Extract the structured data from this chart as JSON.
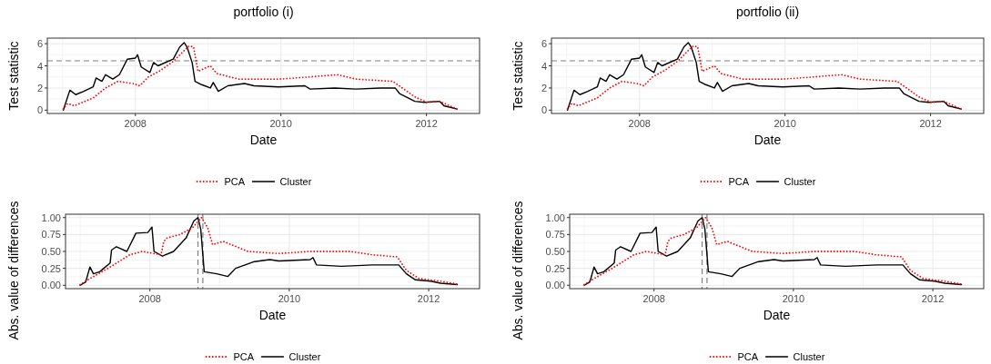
{
  "chart_data": [
    {
      "type": "line",
      "title": "portfolio (i)",
      "xlabel": "Date",
      "ylabel": "Test statistic",
      "xlim": [
        2006.79,
        2012.73
      ],
      "ylim": [
        -0.3,
        6.5
      ],
      "xticks": [
        {
          "value": 2007,
          "label": null
        },
        2008,
        {
          "value": 2009,
          "label": null
        },
        2010,
        {
          "value": 2011,
          "label": null
        },
        2012
      ],
      "yticks": [
        0,
        {
          "value": 1,
          "label": null
        },
        2,
        {
          "value": 3,
          "label": null
        },
        4,
        {
          "value": 5,
          "label": null
        },
        6
      ],
      "grid": true,
      "legend": "bottom",
      "ref_lines": [
        {
          "axis": "y",
          "value": 4.45,
          "color": "#808080",
          "line_style": "dashed"
        }
      ],
      "series": [
        {
          "name": "PCA",
          "color": "#ff0000",
          "line_style": "dotted",
          "x": [
            2007.01,
            2007.07,
            2007.16,
            2007.42,
            2007.59,
            2007.76,
            2007.97,
            2008.06,
            2008.18,
            2008.35,
            2008.52,
            2008.69,
            2008.74,
            2008.8,
            2008.86,
            2009.03,
            2009.12,
            2009.42,
            2009.97,
            2010.4,
            2010.78,
            2011.03,
            2011.54,
            2011.84,
            2012.01,
            2012.18,
            2012.42
          ],
          "values": [
            0.1,
            0.6,
            0.4,
            1.1,
            2.0,
            2.6,
            2.4,
            2.2,
            3.0,
            3.6,
            4.4,
            5.5,
            5.8,
            5.7,
            3.5,
            4.0,
            3.3,
            2.8,
            2.8,
            3.0,
            3.2,
            2.8,
            2.6,
            1.2,
            0.7,
            0.8,
            0.1
          ]
        },
        {
          "name": "Cluster",
          "color": "#000000",
          "line_style": "solid",
          "x": [
            2007.01,
            2007.1,
            2007.18,
            2007.29,
            2007.42,
            2007.46,
            2007.54,
            2007.59,
            2007.69,
            2007.78,
            2007.89,
            2008.0,
            2008.03,
            2008.08,
            2008.2,
            2008.25,
            2008.31,
            2008.52,
            2008.61,
            2008.67,
            2008.71,
            2008.78,
            2008.82,
            2008.91,
            2009.03,
            2009.07,
            2009.14,
            2009.27,
            2009.5,
            2009.63,
            2009.97,
            2010.33,
            2010.4,
            2010.74,
            2011.03,
            2011.37,
            2011.57,
            2011.63,
            2011.84,
            2011.97,
            2012.18,
            2012.24,
            2012.42
          ],
          "values": [
            0.0,
            1.8,
            1.4,
            1.7,
            2.1,
            2.9,
            2.6,
            3.2,
            2.8,
            3.2,
            4.6,
            4.7,
            5.0,
            3.9,
            3.4,
            4.3,
            4.0,
            4.6,
            5.7,
            6.1,
            5.7,
            4.3,
            2.6,
            2.3,
            2.0,
            2.5,
            1.7,
            2.2,
            2.4,
            2.2,
            2.1,
            2.2,
            1.9,
            2.0,
            1.9,
            2.0,
            2.0,
            1.5,
            0.8,
            0.7,
            0.8,
            0.4,
            0.1
          ]
        }
      ]
    },
    {
      "type": "line",
      "title": "portfolio (ii)",
      "xlabel": "Date",
      "ylabel": "Test statistic",
      "xlim": [
        2006.79,
        2012.73
      ],
      "ylim": [
        -0.3,
        6.5
      ],
      "xticks": [
        {
          "value": 2007,
          "label": null
        },
        2008,
        {
          "value": 2009,
          "label": null
        },
        2010,
        {
          "value": 2011,
          "label": null
        },
        2012
      ],
      "yticks": [
        0,
        {
          "value": 1,
          "label": null
        },
        2,
        {
          "value": 3,
          "label": null
        },
        4,
        {
          "value": 5,
          "label": null
        },
        6
      ],
      "grid": true,
      "legend": "bottom",
      "ref_lines": [
        {
          "axis": "y",
          "value": 4.45,
          "color": "#808080",
          "line_style": "dashed"
        }
      ],
      "series": [
        {
          "name": "PCA",
          "color": "#ff0000",
          "line_style": "dotted",
          "x": [
            2007.01,
            2007.07,
            2007.16,
            2007.42,
            2007.59,
            2007.76,
            2007.97,
            2008.06,
            2008.18,
            2008.35,
            2008.52,
            2008.69,
            2008.74,
            2008.8,
            2008.86,
            2009.03,
            2009.12,
            2009.42,
            2009.97,
            2010.4,
            2010.78,
            2011.03,
            2011.54,
            2011.84,
            2012.01,
            2012.18,
            2012.42
          ],
          "values": [
            0.1,
            0.6,
            0.4,
            1.1,
            2.0,
            2.6,
            2.4,
            2.2,
            3.0,
            3.6,
            4.4,
            5.5,
            5.8,
            5.7,
            3.5,
            4.0,
            3.3,
            2.8,
            2.8,
            3.0,
            3.2,
            2.8,
            2.6,
            1.2,
            0.7,
            0.8,
            0.1
          ]
        },
        {
          "name": "Cluster",
          "color": "#000000",
          "line_style": "solid",
          "x": [
            2007.01,
            2007.1,
            2007.18,
            2007.29,
            2007.42,
            2007.46,
            2007.54,
            2007.59,
            2007.69,
            2007.78,
            2007.89,
            2008.0,
            2008.03,
            2008.08,
            2008.2,
            2008.25,
            2008.31,
            2008.52,
            2008.61,
            2008.67,
            2008.71,
            2008.78,
            2008.82,
            2008.91,
            2009.03,
            2009.07,
            2009.14,
            2009.27,
            2009.5,
            2009.63,
            2009.97,
            2010.33,
            2010.4,
            2010.74,
            2011.03,
            2011.37,
            2011.57,
            2011.63,
            2011.84,
            2011.97,
            2012.18,
            2012.24,
            2012.42
          ],
          "values": [
            0.0,
            1.8,
            1.4,
            1.7,
            2.1,
            2.9,
            2.6,
            3.2,
            2.8,
            3.2,
            4.6,
            4.7,
            5.0,
            3.9,
            3.4,
            4.3,
            4.0,
            4.6,
            5.7,
            6.1,
            5.7,
            4.3,
            2.6,
            2.3,
            2.0,
            2.5,
            1.7,
            2.2,
            2.4,
            2.2,
            2.1,
            2.2,
            1.9,
            2.0,
            1.9,
            2.0,
            2.0,
            1.5,
            0.8,
            0.7,
            0.8,
            0.4,
            0.1
          ]
        }
      ]
    },
    {
      "type": "line",
      "xlabel": "Date",
      "ylabel": "Abs. value of differences",
      "xlim": [
        2006.79,
        2012.73
      ],
      "ylim": [
        -0.05,
        1.05
      ],
      "xticks": [
        {
          "value": 2007,
          "label": null
        },
        2008,
        {
          "value": 2009,
          "label": null
        },
        2010,
        {
          "value": 2011,
          "label": null
        },
        2012
      ],
      "yticks": [
        {
          "value": 0,
          "label": "0.00"
        },
        {
          "value": 0.125,
          "label": null
        },
        {
          "value": 0.25,
          "label": "0.25"
        },
        {
          "value": 0.375,
          "label": null
        },
        {
          "value": 0.5,
          "label": "0.50"
        },
        {
          "value": 0.625,
          "label": null
        },
        {
          "value": 0.75,
          "label": "0.75"
        },
        {
          "value": 0.875,
          "label": null
        },
        {
          "value": 1,
          "label": "1.00"
        }
      ],
      "grid": true,
      "legend": "bottom",
      "ref_lines": [
        {
          "axis": "x",
          "value": 2008.69,
          "color": "#808080",
          "line_style": "dashed"
        },
        {
          "axis": "x",
          "value": 2008.76,
          "color": "#808080",
          "line_style": "dashed"
        }
      ],
      "series": [
        {
          "name": "PCA",
          "color": "#ff0000",
          "line_style": "dotted",
          "x": [
            2007.0,
            2007.14,
            2007.4,
            2007.71,
            2007.89,
            2008.16,
            2008.2,
            2008.25,
            2008.43,
            2008.61,
            2008.74,
            2008.83,
            2008.9,
            2009.05,
            2009.41,
            2009.85,
            2010.3,
            2010.88,
            2011.19,
            2011.55,
            2011.68,
            2011.86,
            2012.17,
            2012.4
          ],
          "values": [
            0.01,
            0.1,
            0.25,
            0.45,
            0.5,
            0.45,
            0.65,
            0.7,
            0.75,
            0.85,
            1.0,
            0.85,
            0.6,
            0.65,
            0.5,
            0.47,
            0.5,
            0.5,
            0.45,
            0.42,
            0.22,
            0.1,
            0.06,
            0.02
          ]
        },
        {
          "name": "Cluster",
          "color": "#000000",
          "line_style": "solid",
          "x": [
            2007.0,
            2007.08,
            2007.14,
            2007.19,
            2007.28,
            2007.43,
            2007.45,
            2007.52,
            2007.67,
            2007.8,
            2007.97,
            2008.03,
            2008.06,
            2008.18,
            2008.34,
            2008.52,
            2008.63,
            2008.69,
            2008.73,
            2008.78,
            2008.96,
            2009.12,
            2009.23,
            2009.5,
            2009.72,
            2009.85,
            2010.3,
            2010.34,
            2010.39,
            2010.75,
            2011.19,
            2011.57,
            2011.68,
            2011.81,
            2012.03,
            2012.17,
            2012.41
          ],
          "values": [
            0.0,
            0.05,
            0.27,
            0.17,
            0.2,
            0.33,
            0.52,
            0.57,
            0.5,
            0.77,
            0.78,
            0.86,
            0.5,
            0.43,
            0.5,
            0.7,
            0.95,
            1.0,
            0.83,
            0.2,
            0.17,
            0.13,
            0.25,
            0.35,
            0.38,
            0.36,
            0.38,
            0.41,
            0.3,
            0.28,
            0.3,
            0.3,
            0.17,
            0.08,
            0.06,
            0.03,
            0.01
          ]
        }
      ]
    },
    {
      "type": "line",
      "xlabel": "Date",
      "ylabel": "Abs. value of differences",
      "xlim": [
        2006.79,
        2012.73
      ],
      "ylim": [
        -0.05,
        1.05
      ],
      "xticks": [
        {
          "value": 2007,
          "label": null
        },
        2008,
        {
          "value": 2009,
          "label": null
        },
        2010,
        {
          "value": 2011,
          "label": null
        },
        2012
      ],
      "yticks": [
        {
          "value": 0,
          "label": "0.00"
        },
        {
          "value": 0.125,
          "label": null
        },
        {
          "value": 0.25,
          "label": "0.25"
        },
        {
          "value": 0.375,
          "label": null
        },
        {
          "value": 0.5,
          "label": "0.50"
        },
        {
          "value": 0.625,
          "label": null
        },
        {
          "value": 0.75,
          "label": "0.75"
        },
        {
          "value": 0.875,
          "label": null
        },
        {
          "value": 1,
          "label": "1.00"
        }
      ],
      "grid": true,
      "legend": "bottom",
      "ref_lines": [
        {
          "axis": "x",
          "value": 2008.69,
          "color": "#808080",
          "line_style": "dashed"
        },
        {
          "axis": "x",
          "value": 2008.76,
          "color": "#808080",
          "line_style": "dashed"
        }
      ],
      "series": [
        {
          "name": "PCA",
          "color": "#ff0000",
          "line_style": "dotted",
          "x": [
            2007.0,
            2007.14,
            2007.4,
            2007.71,
            2007.89,
            2008.16,
            2008.2,
            2008.25,
            2008.43,
            2008.61,
            2008.74,
            2008.83,
            2008.9,
            2009.05,
            2009.41,
            2009.85,
            2010.3,
            2010.88,
            2011.19,
            2011.55,
            2011.68,
            2011.86,
            2012.17,
            2012.4
          ],
          "values": [
            0.01,
            0.1,
            0.25,
            0.45,
            0.5,
            0.45,
            0.65,
            0.7,
            0.75,
            0.85,
            1.0,
            0.85,
            0.6,
            0.65,
            0.5,
            0.47,
            0.5,
            0.5,
            0.45,
            0.42,
            0.22,
            0.1,
            0.06,
            0.02
          ]
        },
        {
          "name": "Cluster",
          "color": "#000000",
          "line_style": "solid",
          "x": [
            2007.0,
            2007.08,
            2007.14,
            2007.19,
            2007.28,
            2007.43,
            2007.45,
            2007.52,
            2007.67,
            2007.8,
            2007.97,
            2008.03,
            2008.06,
            2008.18,
            2008.34,
            2008.52,
            2008.63,
            2008.69,
            2008.73,
            2008.78,
            2008.96,
            2009.12,
            2009.23,
            2009.5,
            2009.72,
            2009.85,
            2010.3,
            2010.34,
            2010.39,
            2010.75,
            2011.19,
            2011.57,
            2011.68,
            2011.81,
            2012.03,
            2012.17,
            2012.41
          ],
          "values": [
            0.0,
            0.05,
            0.27,
            0.17,
            0.2,
            0.33,
            0.52,
            0.57,
            0.5,
            0.77,
            0.78,
            0.86,
            0.5,
            0.43,
            0.5,
            0.7,
            0.95,
            1.0,
            0.83,
            0.2,
            0.17,
            0.13,
            0.25,
            0.35,
            0.38,
            0.36,
            0.38,
            0.41,
            0.3,
            0.28,
            0.3,
            0.3,
            0.17,
            0.08,
            0.06,
            0.03,
            0.01
          ]
        }
      ]
    }
  ]
}
